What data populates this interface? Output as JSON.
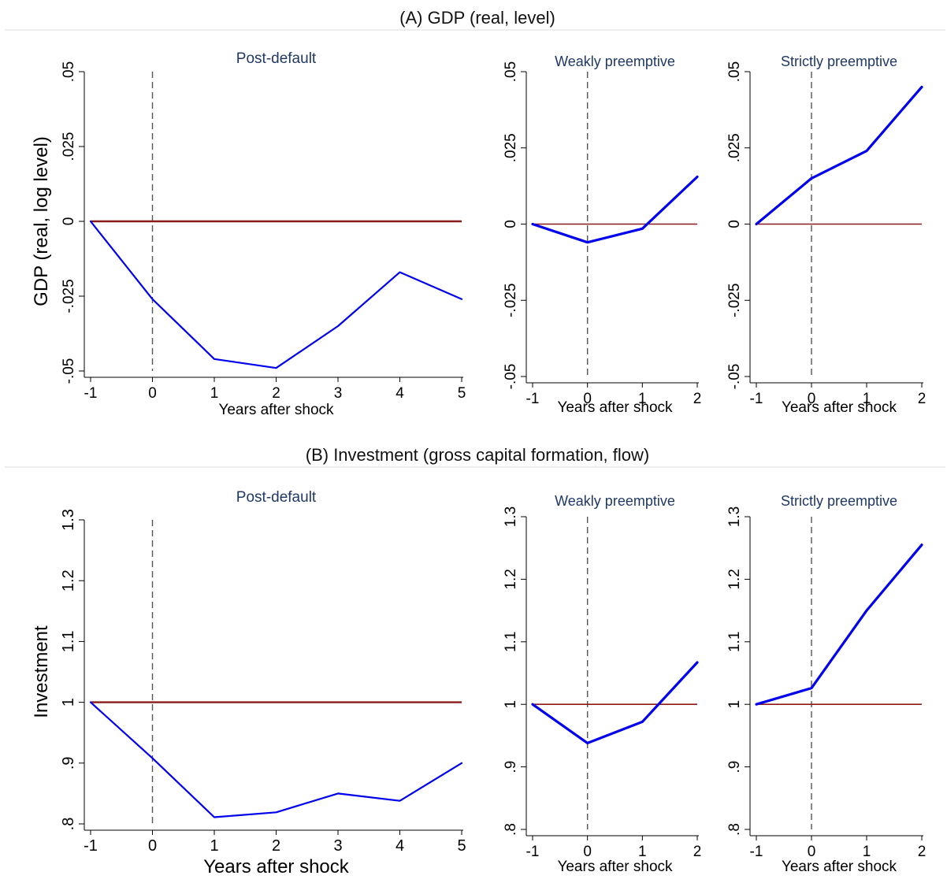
{
  "panels": [
    {
      "title": "(A) GDP (real, level)"
    },
    {
      "title": "(B) Investment (gross capital formation, flow)"
    }
  ],
  "chart_data": [
    {
      "type": "line",
      "panel": 0,
      "subplot": 0,
      "title": "Post-default",
      "xlabel": "Years after shock",
      "ylabel": "GDP (real, log level)",
      "x": [
        -1,
        0,
        1,
        2,
        3,
        4,
        5
      ],
      "xticks": [
        "-1",
        "0",
        "1",
        "2",
        "3",
        "4",
        "5"
      ],
      "yticks": [
        "-.05",
        "-.025",
        "0",
        ".025",
        ".05"
      ],
      "ylim": [
        -0.05,
        0.05
      ],
      "reference_y": 0,
      "vline_x": 0,
      "series": [
        {
          "values": [
            0,
            -0.026,
            -0.046,
            -0.049,
            -0.035,
            -0.017,
            -0.026
          ],
          "color": "#0000ee"
        }
      ]
    },
    {
      "type": "line",
      "panel": 0,
      "subplot": 1,
      "title": "Weakly preemptive",
      "xlabel": "Years after shock",
      "ylabel": "",
      "x": [
        -1,
        0,
        1,
        2
      ],
      "xticks": [
        "-1",
        "0",
        "1",
        "2"
      ],
      "yticks": [
        "-.05",
        "-.025",
        "0",
        ".025",
        ".05"
      ],
      "ylim": [
        -0.05,
        0.05
      ],
      "reference_y": 0,
      "vline_x": 0,
      "series": [
        {
          "values": [
            0,
            -0.006,
            -0.0015,
            0.0155
          ],
          "color": "#0000ee"
        }
      ]
    },
    {
      "type": "line",
      "panel": 0,
      "subplot": 2,
      "title": "Strictly preemptive",
      "xlabel": "Years after shock",
      "ylabel": "",
      "x": [
        -1,
        0,
        1,
        2
      ],
      "xticks": [
        "-1",
        "0",
        "1",
        "2"
      ],
      "yticks": [
        "-.05",
        "-.025",
        "0",
        ".025",
        ".05"
      ],
      "ylim": [
        -0.05,
        0.05
      ],
      "reference_y": 0,
      "vline_x": 0,
      "series": [
        {
          "values": [
            0,
            0.015,
            0.024,
            0.045
          ],
          "color": "#0000ee"
        }
      ]
    },
    {
      "type": "line",
      "panel": 1,
      "subplot": 0,
      "title": "Post-default",
      "xlabel": "Years after shock",
      "ylabel": "Investment",
      "x": [
        -1,
        0,
        1,
        2,
        3,
        4,
        5
      ],
      "xticks": [
        "-1",
        "0",
        "1",
        "2",
        "3",
        "4",
        "5"
      ],
      "yticks": [
        ".8",
        ".9",
        "1",
        "1.1",
        "1.2",
        "1.3"
      ],
      "ylim": [
        0.8,
        1.3
      ],
      "reference_y": 1,
      "vline_x": 0,
      "series": [
        {
          "values": [
            1.0,
            0.908,
            0.811,
            0.819,
            0.85,
            0.838,
            0.9
          ],
          "color": "#0000ee"
        }
      ]
    },
    {
      "type": "line",
      "panel": 1,
      "subplot": 1,
      "title": "Weakly preemptive",
      "xlabel": "Years after shock",
      "ylabel": "",
      "x": [
        -1,
        0,
        1,
        2
      ],
      "xticks": [
        "-1",
        "0",
        "1",
        "2"
      ],
      "yticks": [
        ".8",
        ".9",
        "1",
        "1.1",
        "1.2",
        "1.3"
      ],
      "ylim": [
        0.8,
        1.3
      ],
      "reference_y": 1,
      "vline_x": 0,
      "series": [
        {
          "values": [
            1.0,
            0.938,
            0.972,
            1.067
          ],
          "color": "#0000ee"
        }
      ]
    },
    {
      "type": "line",
      "panel": 1,
      "subplot": 2,
      "title": "Strictly preemptive",
      "xlabel": "Years after shock",
      "ylabel": "",
      "x": [
        -1,
        0,
        1,
        2
      ],
      "xticks": [
        "-1",
        "0",
        "1",
        "2"
      ],
      "yticks": [
        ".8",
        ".9",
        "1",
        "1.1",
        "1.2",
        "1.3"
      ],
      "ylim": [
        0.8,
        1.3
      ],
      "reference_y": 1,
      "vline_x": 0,
      "series": [
        {
          "values": [
            1.0,
            1.026,
            1.15,
            1.255
          ],
          "color": "#0000ee"
        }
      ]
    }
  ]
}
